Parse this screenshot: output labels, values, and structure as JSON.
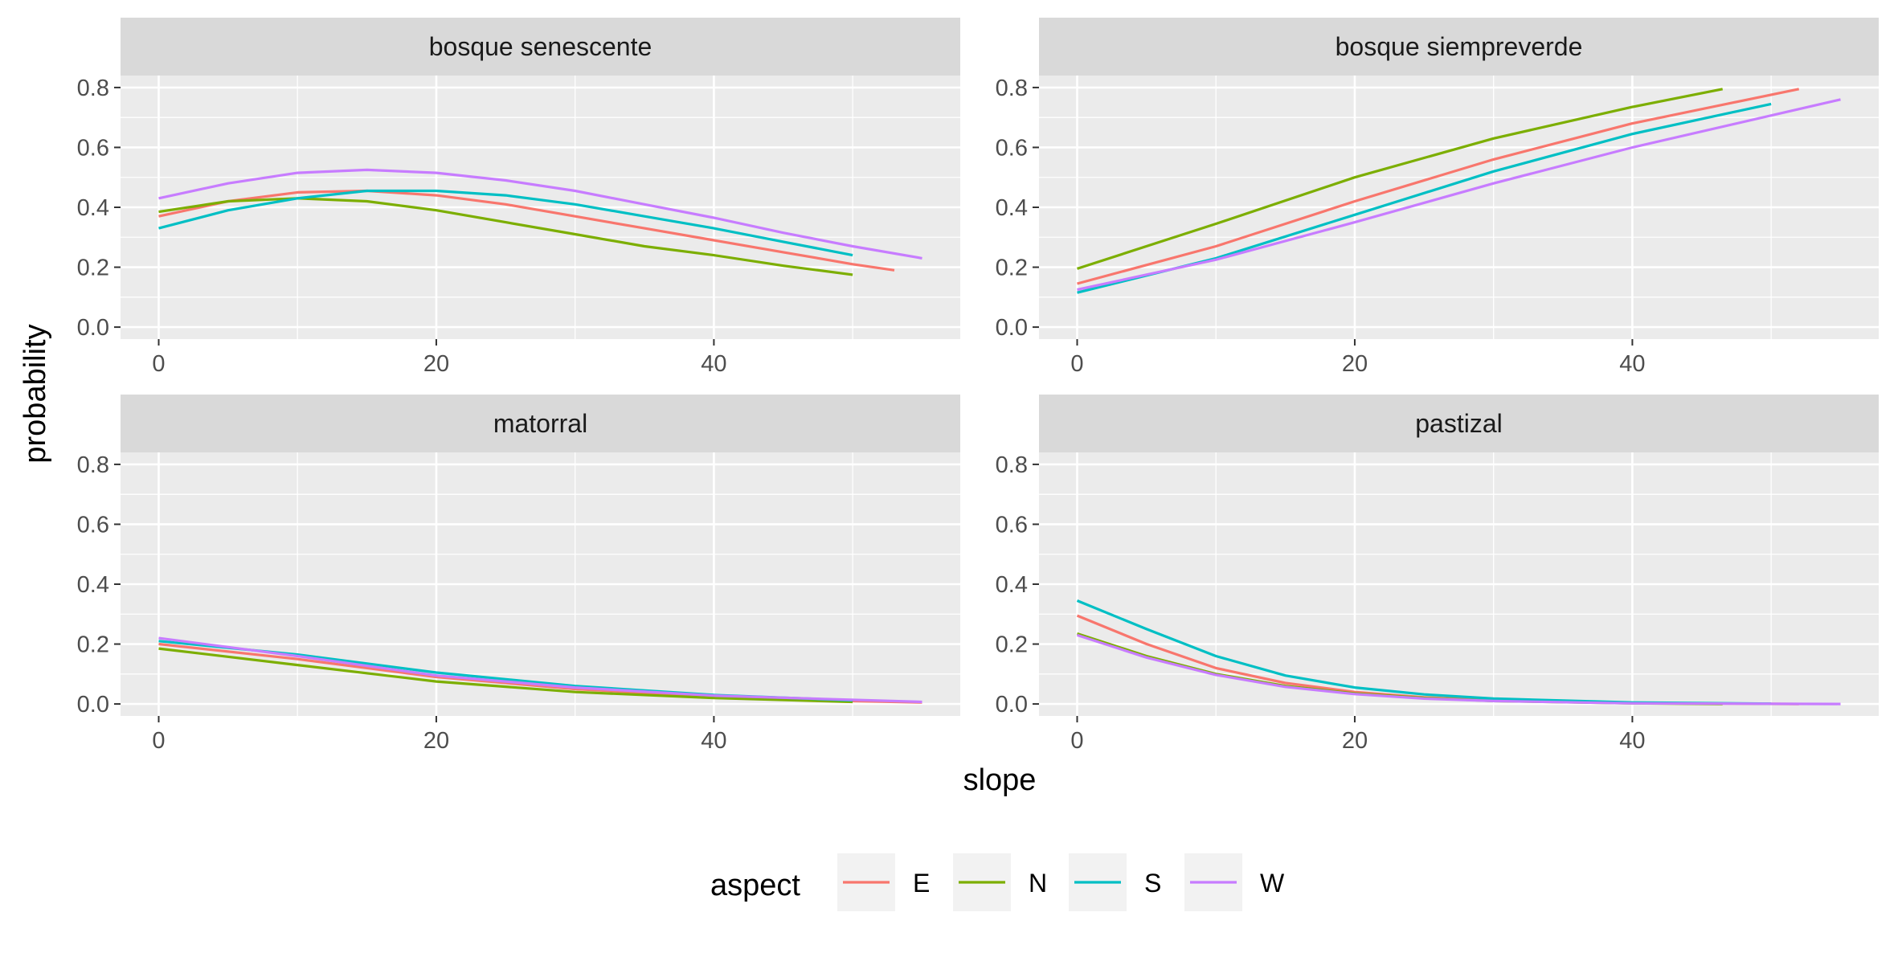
{
  "chart_data": {
    "type": "line",
    "xlabel": "slope",
    "ylabel": "probability",
    "xlim": [
      -2.75,
      57.75
    ],
    "ylim": [
      -0.04,
      0.84
    ],
    "x_ticks": [
      0,
      20,
      40
    ],
    "x_tick_labels": [
      "0",
      "20",
      "40"
    ],
    "y_ticks": [
      0.0,
      0.2,
      0.4,
      0.6,
      0.8
    ],
    "y_tick_labels": [
      "0.0",
      "0.2",
      "0.4",
      "0.6",
      "0.8"
    ],
    "grid": true,
    "legend": {
      "title": "aspect",
      "position": "bottom",
      "entries": [
        "E",
        "N",
        "S",
        "W"
      ]
    },
    "colors": {
      "E": "#F8766D",
      "N": "#7CAE00",
      "S": "#00BFC4",
      "W": "#C77CFF"
    },
    "panels": [
      {
        "title": "bosque senescente",
        "series": [
          {
            "name": "E",
            "x": [
              0,
              5,
              10,
              15,
              20,
              25,
              30,
              35,
              40,
              45,
              50,
              53
            ],
            "y": [
              0.37,
              0.42,
              0.45,
              0.455,
              0.44,
              0.41,
              0.37,
              0.33,
              0.29,
              0.25,
              0.21,
              0.19
            ]
          },
          {
            "name": "N",
            "x": [
              0,
              5,
              10,
              15,
              20,
              25,
              30,
              35,
              40,
              45,
              50
            ],
            "y": [
              0.385,
              0.42,
              0.43,
              0.42,
              0.39,
              0.35,
              0.31,
              0.27,
              0.24,
              0.205,
              0.175
            ]
          },
          {
            "name": "S",
            "x": [
              0,
              5,
              10,
              15,
              20,
              25,
              30,
              35,
              40,
              45,
              50
            ],
            "y": [
              0.33,
              0.39,
              0.43,
              0.455,
              0.455,
              0.44,
              0.41,
              0.37,
              0.33,
              0.285,
              0.24
            ]
          },
          {
            "name": "W",
            "x": [
              0,
              5,
              10,
              15,
              20,
              25,
              30,
              35,
              40,
              45,
              50,
              55
            ],
            "y": [
              0.43,
              0.48,
              0.515,
              0.525,
              0.515,
              0.49,
              0.455,
              0.41,
              0.365,
              0.315,
              0.27,
              0.23
            ]
          }
        ]
      },
      {
        "title": "bosque siempreverde",
        "series": [
          {
            "name": "E",
            "x": [
              0,
              10,
              20,
              30,
              40,
              52
            ],
            "y": [
              0.145,
              0.27,
              0.42,
              0.56,
              0.68,
              0.795
            ]
          },
          {
            "name": "N",
            "x": [
              0,
              10,
              20,
              30,
              40,
              46.5
            ],
            "y": [
              0.195,
              0.345,
              0.5,
              0.63,
              0.735,
              0.795
            ]
          },
          {
            "name": "S",
            "x": [
              0,
              10,
              20,
              30,
              40,
              50
            ],
            "y": [
              0.115,
              0.23,
              0.375,
              0.52,
              0.645,
              0.745
            ]
          },
          {
            "name": "W",
            "x": [
              0,
              10,
              20,
              30,
              40,
              55
            ],
            "y": [
              0.125,
              0.225,
              0.35,
              0.48,
              0.6,
              0.76
            ]
          }
        ]
      },
      {
        "title": "matorral",
        "series": [
          {
            "name": "E",
            "x": [
              0,
              10,
              20,
              30,
              40,
              50,
              55
            ],
            "y": [
              0.2,
              0.15,
              0.09,
              0.05,
              0.025,
              0.01,
              0.005
            ]
          },
          {
            "name": "N",
            "x": [
              0,
              10,
              20,
              30,
              40,
              50
            ],
            "y": [
              0.185,
              0.13,
              0.075,
              0.04,
              0.02,
              0.007
            ]
          },
          {
            "name": "S",
            "x": [
              0,
              10,
              20,
              30,
              40,
              50
            ],
            "y": [
              0.21,
              0.165,
              0.105,
              0.06,
              0.03,
              0.012
            ]
          },
          {
            "name": "W",
            "x": [
              0,
              10,
              20,
              30,
              40,
              55
            ],
            "y": [
              0.22,
              0.16,
              0.095,
              0.055,
              0.028,
              0.007
            ]
          }
        ]
      },
      {
        "title": "pastizal",
        "series": [
          {
            "name": "E",
            "x": [
              0,
              5,
              10,
              15,
              20,
              25,
              30,
              40,
              52
            ],
            "y": [
              0.295,
              0.2,
              0.12,
              0.07,
              0.04,
              0.022,
              0.012,
              0.003,
              0.0
            ]
          },
          {
            "name": "N",
            "x": [
              0,
              5,
              10,
              15,
              20,
              25,
              30,
              40,
              46.5
            ],
            "y": [
              0.235,
              0.16,
              0.1,
              0.06,
              0.035,
              0.02,
              0.01,
              0.002,
              0.0
            ]
          },
          {
            "name": "S",
            "x": [
              0,
              5,
              10,
              15,
              20,
              25,
              30,
              40,
              50
            ],
            "y": [
              0.345,
              0.25,
              0.16,
              0.095,
              0.055,
              0.032,
              0.018,
              0.005,
              0.001
            ]
          },
          {
            "name": "W",
            "x": [
              0,
              5,
              10,
              15,
              20,
              25,
              30,
              40,
              55
            ],
            "y": [
              0.23,
              0.155,
              0.097,
              0.057,
              0.033,
              0.018,
              0.01,
              0.002,
              0.0
            ]
          }
        ]
      }
    ]
  }
}
